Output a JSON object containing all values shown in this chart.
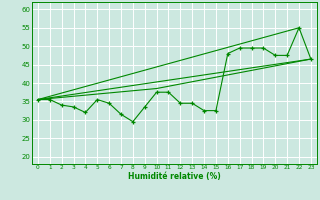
{
  "xlabel": "Humidité relative (%)",
  "xlim": [
    -0.5,
    23.5
  ],
  "ylim": [
    18,
    62
  ],
  "yticks": [
    20,
    25,
    30,
    35,
    40,
    45,
    50,
    55,
    60
  ],
  "xticks": [
    0,
    1,
    2,
    3,
    4,
    5,
    6,
    7,
    8,
    9,
    10,
    11,
    12,
    13,
    14,
    15,
    16,
    17,
    18,
    19,
    20,
    21,
    22,
    23
  ],
  "bg_color": "#cce8e0",
  "grid_color": "#ffffff",
  "line_color": "#008800",
  "data_x": [
    0,
    1,
    2,
    3,
    4,
    5,
    6,
    7,
    8,
    9,
    10,
    11,
    12,
    13,
    14,
    15,
    16,
    17,
    18,
    19,
    20,
    21,
    22,
    23
  ],
  "data_y": [
    35.5,
    35.5,
    34.0,
    33.5,
    32.0,
    35.5,
    34.5,
    31.5,
    29.5,
    33.5,
    37.5,
    37.5,
    34.5,
    34.5,
    32.5,
    32.5,
    48.0,
    49.5,
    49.5,
    49.5,
    47.5,
    47.5,
    55.0,
    46.5
  ],
  "line2_x": [
    0,
    22
  ],
  "line2_y": [
    35.5,
    55.0
  ],
  "line3_x": [
    0,
    23
  ],
  "line3_y": [
    35.5,
    46.5
  ],
  "line4_x": [
    0,
    10,
    23
  ],
  "line4_y": [
    35.5,
    38.5,
    46.5
  ]
}
